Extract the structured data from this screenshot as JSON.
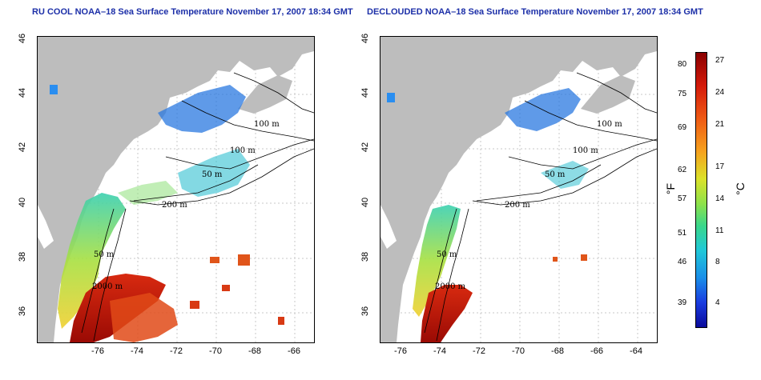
{
  "panels": [
    {
      "title": "RU COOL NOAA–18 Sea Surface Temperature November 17, 2007 18:34 GMT"
    },
    {
      "title": "DECLOUDED NOAA–18 Sea Surface Temperature November 17, 2007 18:34 GMT"
    }
  ],
  "axes": {
    "x_ticks": [
      "-76",
      "-74",
      "-72",
      "-70",
      "-68",
      "-66",
      "-64"
    ],
    "y_ticks": [
      "36",
      "38",
      "40",
      "42",
      "44",
      "46"
    ]
  },
  "contours": {
    "left": [
      "100 m",
      "100 m",
      "50 m",
      "200 m",
      "50 m",
      "2000 m"
    ],
    "right": [
      "100 m",
      "100 m",
      "50 m",
      "200 m",
      "50 m",
      "2000 m"
    ]
  },
  "colorbar": {
    "fahrenheit_unit": "°F",
    "celsius_unit": "°C",
    "fahrenheit_ticks": [
      "80",
      "75",
      "69",
      "62",
      "57",
      "51",
      "46",
      "39"
    ],
    "celsius_ticks": [
      "27",
      "24",
      "21",
      "17",
      "14",
      "11",
      "8",
      "4"
    ]
  },
  "colors": {
    "land": "#bdbdbd",
    "title": "#1c2fa8",
    "cold": "#1a3ce0",
    "warm": "#c81a0a"
  }
}
